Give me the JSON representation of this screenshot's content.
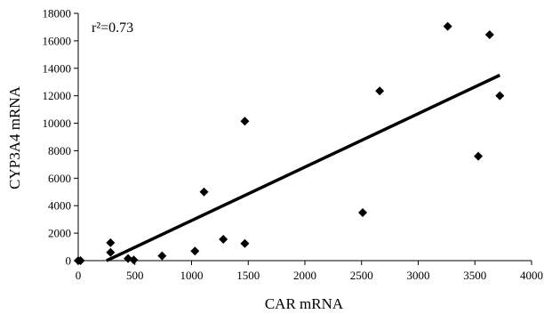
{
  "chart_data": {
    "type": "scatter",
    "xlabel": "CAR mRNA",
    "ylabel": "CYP3A4 mRNA",
    "annotation": "r²=0.73",
    "xlim": [
      0,
      4000
    ],
    "ylim": [
      0,
      18000
    ],
    "xticks": [
      0,
      500,
      1000,
      1500,
      2000,
      2500,
      3000,
      3500,
      4000
    ],
    "yticks": [
      0,
      2000,
      4000,
      6000,
      8000,
      10000,
      12000,
      14000,
      16000,
      18000
    ],
    "grid": false,
    "legend": "none",
    "points": [
      {
        "x": 0,
        "y": 0
      },
      {
        "x": 20,
        "y": 0
      },
      {
        "x": 285,
        "y": 1300
      },
      {
        "x": 285,
        "y": 600
      },
      {
        "x": 440,
        "y": 150
      },
      {
        "x": 490,
        "y": 50
      },
      {
        "x": 740,
        "y": 350
      },
      {
        "x": 1030,
        "y": 700
      },
      {
        "x": 1110,
        "y": 5000
      },
      {
        "x": 1280,
        "y": 1550
      },
      {
        "x": 1470,
        "y": 10150
      },
      {
        "x": 1470,
        "y": 1250
      },
      {
        "x": 2510,
        "y": 3500
      },
      {
        "x": 2660,
        "y": 12350
      },
      {
        "x": 3260,
        "y": 17050
      },
      {
        "x": 3530,
        "y": 7600
      },
      {
        "x": 3630,
        "y": 16450
      },
      {
        "x": 3720,
        "y": 12000
      }
    ],
    "trendline": {
      "x": [
        250,
        3720
      ],
      "y": [
        0,
        13500
      ]
    },
    "colors": {
      "marker": "#000000",
      "line": "#000000",
      "axis": "#000000"
    }
  }
}
